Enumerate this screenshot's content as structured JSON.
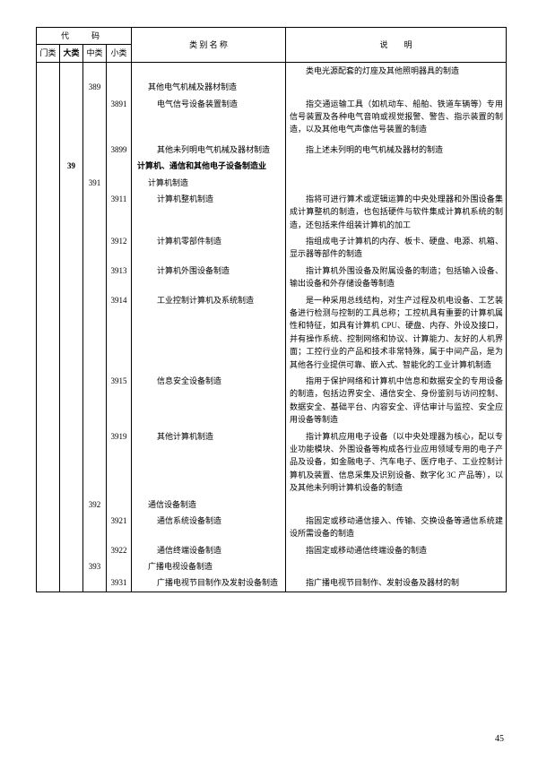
{
  "header": {
    "code": "代　码",
    "men": "门类",
    "da": "大类",
    "zhong": "中类",
    "xiao": "小类",
    "name_label": "类 别 名 称",
    "desc_label": "说　　明"
  },
  "rows": [
    {
      "zhong": "",
      "xiao": "",
      "name": "",
      "desc": "类电光源配套的灯座及其他照明器具的制造"
    },
    {
      "zhong": "389",
      "xiao": "",
      "name": "其他电气机械及器材制造",
      "name_indent": 1,
      "desc": ""
    },
    {
      "zhong": "",
      "xiao": "3891",
      "name": "电气信号设备装置制造",
      "name_indent": 2,
      "desc": "指交通运输工具（如机动车、船舶、铁道车辆等）专用信号装置及各种电气音响或视觉报警、警告、指示装置的制造，以及其他电气声像信号装置的制造"
    },
    {
      "zhong": "",
      "xiao": "",
      "name": "",
      "desc": ""
    },
    {
      "zhong": "",
      "xiao": "3899",
      "name": "其他未列明电气机械及器材制造",
      "name_indent": 2,
      "desc": "指上述未列明的电气机械及器材的制造"
    },
    {
      "da": "39",
      "zhong": "",
      "xiao": "",
      "name": "计算机、通信和其他电子设备制造业",
      "name_indent": 0,
      "bold": true,
      "desc": ""
    },
    {
      "zhong": "391",
      "xiao": "",
      "name": "计算机制造",
      "name_indent": 1,
      "desc": ""
    },
    {
      "zhong": "",
      "xiao": "3911",
      "name": "计算机整机制造",
      "name_indent": 2,
      "desc": "指将可进行算术或逻辑运算的中央处理器和外围设备集成计算整机的制造，也包括硬件与软件集成计算机系统的制造，还包括来件组装计算机的加工"
    },
    {
      "zhong": "",
      "xiao": "3912",
      "name": "计算机零部件制造",
      "name_indent": 2,
      "desc": "指组成电子计算机的内存、板卡、硬盘、电源、机箱、显示器等部件的制造"
    },
    {
      "zhong": "",
      "xiao": "3913",
      "name": "计算机外围设备制造",
      "name_indent": 2,
      "desc": "指计算机外围设备及附属设备的制造；包括输入设备、输出设备和外存储设备等制造"
    },
    {
      "zhong": "",
      "xiao": "3914",
      "name": "工业控制计算机及系统制造",
      "name_indent": 2,
      "desc": "是一种采用总线结构，对生产过程及机电设备、工艺装备进行检测与控制的工具总称；工控机具有重要的计算机属性和特征，如具有计算机 CPU、硬盘、内存、外设及接口，并有操作系统、控制网络和协议、计算能力、友好的人机界面；工控行业的产品和技术非常特殊，属于中间产品，是为其他各行业提供可靠、嵌入式、智能化的工业计算机制造"
    },
    {
      "zhong": "",
      "xiao": "3915",
      "name": "信息安全设备制造",
      "name_indent": 2,
      "desc": "指用于保护网络和计算机中信息和数据安全的专用设备的制造，包括边界安全、通信安全、身份鉴别与访问控制、数据安全、基础平台、内容安全、评估审计与监控、安全应用设备等制造"
    },
    {
      "zhong": "",
      "xiao": "3919",
      "name": "其他计算机制造",
      "name_indent": 2,
      "desc": "指计算机应用电子设备（以中央处理器为核心，配以专业功能模块、外围设备等构成各行业应用领域专用的电子产品及设备，如金融电子、汽车电子、医疗电子、工业控制计算机及装置、信息采集及识别设备、数字化 3C 产品等），以及其他未列明计算机设备的制造"
    },
    {
      "zhong": "392",
      "xiao": "",
      "name": "通信设备制造",
      "name_indent": 1,
      "desc": ""
    },
    {
      "zhong": "",
      "xiao": "3921",
      "name": "通信系统设备制造",
      "name_indent": 2,
      "desc": "指固定或移动通信接入、传输、交换设备等通信系统建设所需设备的制造"
    },
    {
      "zhong": "",
      "xiao": "3922",
      "name": "通信终端设备制造",
      "name_indent": 2,
      "desc": "指固定或移动通信终端设备的制造"
    },
    {
      "zhong": "393",
      "xiao": "",
      "name": "广播电视设备制造",
      "name_indent": 1,
      "desc": ""
    },
    {
      "zhong": "",
      "xiao": "3931",
      "name": "广播电视节目制作及发射设备制造",
      "name_indent": 2,
      "desc": "指广播电视节目制作、发射设备及器材的制"
    }
  ],
  "pageNumber": "45"
}
